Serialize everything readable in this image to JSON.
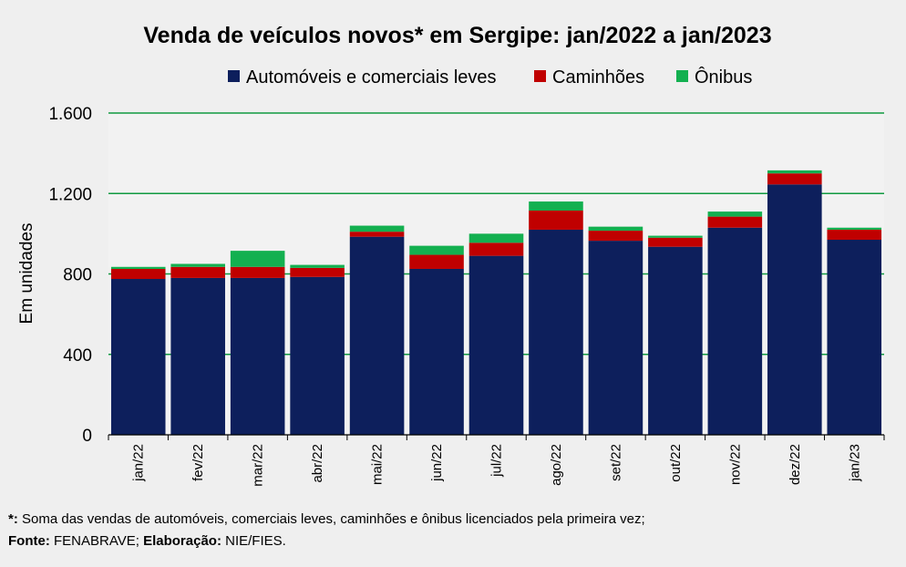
{
  "chart_data": {
    "type": "bar",
    "stacked": true,
    "title": "Venda de veículos novos* em Sergipe: jan/2022 a jan/2023",
    "ylabel": "Em unidades",
    "xlabel": "",
    "ylim": [
      0,
      1600
    ],
    "yticks": [
      0,
      400,
      800,
      1200,
      1600
    ],
    "ytick_labels": [
      "0",
      "400",
      "800",
      "1.200",
      "1.600"
    ],
    "categories": [
      "jan/22",
      "fev/22",
      "mar/22",
      "abr/22",
      "mai/22",
      "jun/22",
      "jul/22",
      "ago/22",
      "set/22",
      "out/22",
      "nov/22",
      "dez/22",
      "jan/23"
    ],
    "series": [
      {
        "name": "Automóveis e comerciais leves",
        "color": "#0d1f5c",
        "values": [
          775,
          780,
          780,
          785,
          985,
          825,
          890,
          1020,
          965,
          935,
          1030,
          1245,
          970
        ]
      },
      {
        "name": "Caminhões",
        "color": "#c00000",
        "values": [
          50,
          55,
          55,
          45,
          25,
          70,
          65,
          95,
          50,
          45,
          55,
          55,
          50
        ]
      },
      {
        "name": "Ônibus",
        "color": "#13b050",
        "values": [
          10,
          15,
          80,
          15,
          30,
          45,
          45,
          45,
          20,
          10,
          25,
          15,
          10
        ]
      }
    ],
    "grid": true,
    "gridline_color": "#109a40",
    "plot_background": "#f2f2f2",
    "legend_position": "top"
  },
  "footnote": {
    "line1_bold": "*:",
    "line1_text": " Soma das vendas de automóveis, comerciais leves, caminhões e ônibus licenciados pela primeira vez;",
    "source_label": "Fonte:",
    "source_text": " FENABRAVE; ",
    "elab_label": "Elaboração:",
    "elab_text": " NIE/FIES."
  }
}
